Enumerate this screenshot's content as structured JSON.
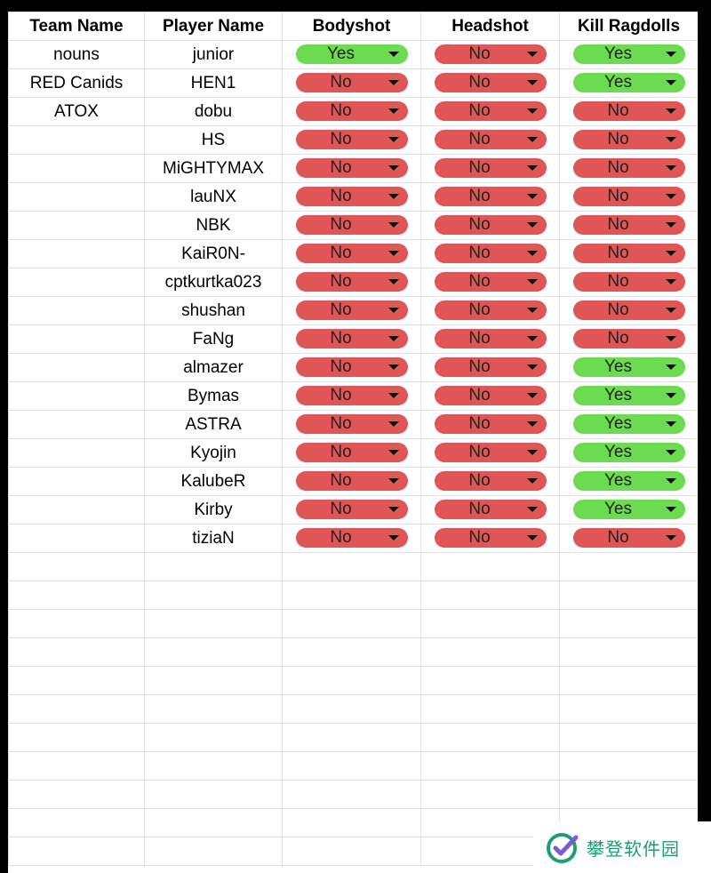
{
  "columns": [
    "Team Name",
    "Player Name",
    "Bodyshot",
    "Headshot",
    "Kill Ragdolls"
  ],
  "teams": [
    "nouns",
    "RED Canids",
    "ATOX"
  ],
  "rows": [
    {
      "player": "junior",
      "body": "Yes",
      "head": "No",
      "kill": "Yes"
    },
    {
      "player": "HEN1",
      "body": "No",
      "head": "No",
      "kill": "Yes"
    },
    {
      "player": "dobu",
      "body": "No",
      "head": "No",
      "kill": "No"
    },
    {
      "player": "HS",
      "body": "No",
      "head": "No",
      "kill": "No"
    },
    {
      "player": "MiGHTYMAX",
      "body": "No",
      "head": "No",
      "kill": "No"
    },
    {
      "player": "lauNX",
      "body": "No",
      "head": "No",
      "kill": "No"
    },
    {
      "player": "NBK",
      "body": "No",
      "head": "No",
      "kill": "No"
    },
    {
      "player": "KaiR0N-",
      "body": "No",
      "head": "No",
      "kill": "No"
    },
    {
      "player": "cptkurtka023",
      "body": "No",
      "head": "No",
      "kill": "No"
    },
    {
      "player": "shushan",
      "body": "No",
      "head": "No",
      "kill": "No"
    },
    {
      "player": "FaNg",
      "body": "No",
      "head": "No",
      "kill": "No"
    },
    {
      "player": "almazer",
      "body": "No",
      "head": "No",
      "kill": "Yes"
    },
    {
      "player": "Bymas",
      "body": "No",
      "head": "No",
      "kill": "Yes"
    },
    {
      "player": "ASTRA",
      "body": "No",
      "head": "No",
      "kill": "Yes"
    },
    {
      "player": "Kyojin",
      "body": "No",
      "head": "No",
      "kill": "Yes"
    },
    {
      "player": "KalubeR",
      "body": "No",
      "head": "No",
      "kill": "Yes"
    },
    {
      "player": "Kirby",
      "body": "No",
      "head": "No",
      "kill": "Yes"
    },
    {
      "player": "tiziaN",
      "body": "No",
      "head": "No",
      "kill": "No"
    }
  ],
  "colors": {
    "yes": "#6bdc4f",
    "no": "#e05656"
  },
  "watermark": {
    "text": "攀登软件园",
    "icon": "check-badge-icon"
  }
}
